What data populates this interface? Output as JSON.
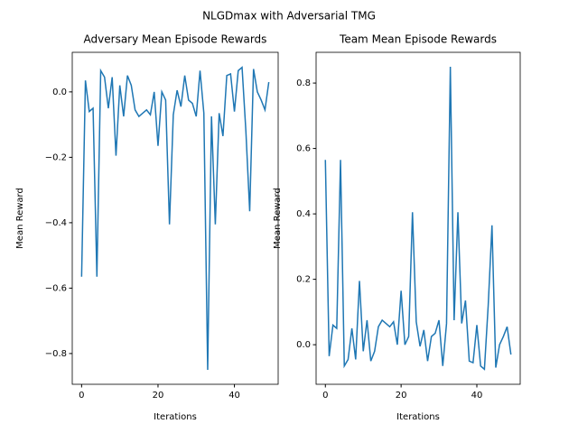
{
  "title": "NLGDmax with Adversarial TMG",
  "chart_data": [
    {
      "type": "line",
      "title": "Adversary Mean Episode Rewards",
      "xlabel": "Iterations",
      "ylabel": "Mean Reward",
      "x": [
        0,
        1,
        2,
        3,
        4,
        5,
        6,
        7,
        8,
        9,
        10,
        11,
        12,
        13,
        14,
        15,
        16,
        17,
        18,
        19,
        20,
        21,
        22,
        23,
        24,
        25,
        26,
        27,
        28,
        29,
        30,
        31,
        32,
        33,
        34,
        35,
        36,
        37,
        38,
        39,
        40,
        41,
        42,
        43,
        44,
        45,
        46,
        47,
        48,
        49
      ],
      "series": [
        {
          "name": "Adversary",
          "color": "#1f77b4",
          "values": [
            -0.565,
            0.035,
            -0.06,
            -0.05,
            -0.565,
            0.065,
            0.045,
            -0.05,
            0.045,
            -0.195,
            0.02,
            -0.075,
            0.05,
            0.02,
            -0.055,
            -0.075,
            -0.065,
            -0.055,
            -0.07,
            0.0,
            -0.165,
            0.0,
            -0.025,
            -0.405,
            -0.07,
            0.005,
            -0.045,
            0.05,
            -0.025,
            -0.035,
            -0.075,
            0.065,
            -0.065,
            -0.85,
            -0.075,
            -0.405,
            -0.065,
            -0.135,
            0.05,
            0.055,
            -0.06,
            0.065,
            0.075,
            -0.12,
            -0.365,
            0.07,
            0.0,
            -0.025,
            -0.055,
            0.03
          ]
        }
      ],
      "xlim": [
        -2.45,
        51.45
      ],
      "xticks": [
        0,
        20,
        40
      ],
      "ylim": [
        -0.894,
        0.121
      ],
      "yticks": [
        {
          "value": -0.8,
          "label": "−0.8"
        },
        {
          "value": -0.6,
          "label": "−0.6"
        },
        {
          "value": -0.4,
          "label": "−0.4"
        },
        {
          "value": -0.2,
          "label": "−0.2"
        },
        {
          "value": 0,
          "label": "0.0"
        }
      ]
    },
    {
      "type": "line",
      "title": "Team Mean Episode Rewards",
      "xlabel": "Iterations",
      "ylabel": "Mean Reward",
      "x": [
        0,
        1,
        2,
        3,
        4,
        5,
        6,
        7,
        8,
        9,
        10,
        11,
        12,
        13,
        14,
        15,
        16,
        17,
        18,
        19,
        20,
        21,
        22,
        23,
        24,
        25,
        26,
        27,
        28,
        29,
        30,
        31,
        32,
        33,
        34,
        35,
        36,
        37,
        38,
        39,
        40,
        41,
        42,
        43,
        44,
        45,
        46,
        47,
        48,
        49
      ],
      "series": [
        {
          "name": "Team",
          "color": "#1f77b4",
          "values": [
            0.565,
            -0.035,
            0.06,
            0.05,
            0.565,
            -0.065,
            -0.045,
            0.05,
            -0.045,
            0.195,
            -0.02,
            0.075,
            -0.05,
            -0.02,
            0.055,
            0.075,
            0.065,
            0.055,
            0.07,
            0.0,
            0.165,
            0.0,
            0.025,
            0.405,
            0.07,
            -0.005,
            0.045,
            -0.05,
            0.025,
            0.035,
            0.075,
            -0.065,
            0.065,
            0.85,
            0.075,
            0.405,
            0.065,
            0.135,
            -0.05,
            -0.055,
            0.06,
            -0.065,
            -0.075,
            0.12,
            0.365,
            -0.07,
            0.0,
            0.025,
            0.055,
            -0.03
          ]
        }
      ],
      "xlim": [
        -2.45,
        51.45
      ],
      "xticks": [
        0,
        20,
        40
      ],
      "ylim": [
        -0.121,
        0.894
      ],
      "yticks": [
        {
          "value": 0,
          "label": "0.0"
        },
        {
          "value": 0.2,
          "label": "0.2"
        },
        {
          "value": 0.4,
          "label": "0.4"
        },
        {
          "value": 0.6,
          "label": "0.6"
        },
        {
          "value": 0.8,
          "label": "0.8"
        }
      ]
    }
  ]
}
